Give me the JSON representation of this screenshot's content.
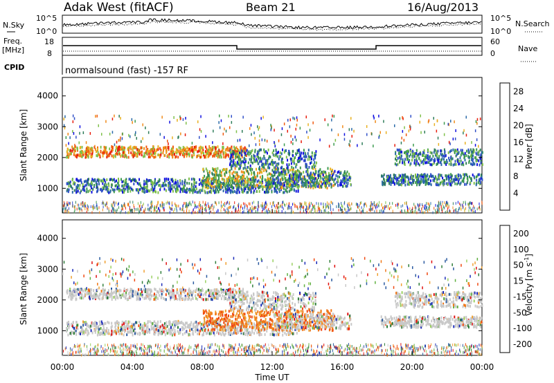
{
  "header": {
    "title": "Adak West (fitACF)",
    "beam": "Beam 21",
    "date": "16/Aug/2013"
  },
  "noise_panel": {
    "left_label": "N.Sky",
    "right_label": "N.Search",
    "tick_top": "10^5",
    "tick_bottom": "10^0"
  },
  "freq_panel": {
    "left_label_1": "Freq.",
    "left_label_2": "[MHz]",
    "right_label": "Nave",
    "left_tick_top": "18",
    "left_tick_bottom": "8",
    "right_tick_top": "60",
    "right_tick_bottom": "0"
  },
  "cpid": {
    "label": "CPID",
    "text": "normalsound (fast) -157 RF"
  },
  "chart_data": [
    {
      "type": "heatmap",
      "name": "power",
      "ylabel": "Slant Range [km]",
      "xlabel": "Time UT",
      "y_ticks": [
        "1000",
        "2000",
        "3000",
        "4000"
      ],
      "ylim": [
        200,
        4600
      ],
      "xlim_hours": [
        0,
        24
      ],
      "x_ticks": [
        "00:00",
        "04:00",
        "08:00",
        "12:00",
        "16:00",
        "20:00",
        "00:00"
      ],
      "colorbar": {
        "label": "Power [dB]",
        "ticks": [
          "4",
          "8",
          "12",
          "16",
          "20",
          "24",
          "28"
        ],
        "range": [
          0,
          30
        ],
        "colors": [
          "#1010e0",
          "#3050c8",
          "#2a6aa8",
          "#2f7d5a",
          "#3b9a4e",
          "#7fc04a",
          "#e8b020",
          "#f08a18",
          "#f05a10",
          "#e81e0e"
        ]
      }
    },
    {
      "type": "heatmap",
      "name": "velocity",
      "ylabel": "Slant Range [km]",
      "xlabel": "Time UT",
      "y_ticks": [
        "1000",
        "2000",
        "3000",
        "4000"
      ],
      "ylim": [
        200,
        4600
      ],
      "xlim_hours": [
        0,
        24
      ],
      "x_ticks": [
        "00:00",
        "04:00",
        "08:00",
        "12:00",
        "16:00",
        "20:00",
        "00:00"
      ],
      "colorbar": {
        "label": "Velocity [m s",
        "label_exp": "-1",
        "label_end": "]",
        "ticks": [
          "200",
          "100",
          "50",
          "15",
          "-15",
          "-50",
          "-100",
          "-200"
        ],
        "colors": [
          "#1a2ab8",
          "#2a5aa0",
          "#2f7d3a",
          "#5fb040",
          "#9ad060",
          "#c8c8c8",
          "#f0a030",
          "#f07818",
          "#f04810",
          "#e01010"
        ]
      }
    }
  ],
  "colors": {
    "power_scale": "blue-green-yellow-orange-red",
    "velocity_grey": "#c8c8c8"
  }
}
